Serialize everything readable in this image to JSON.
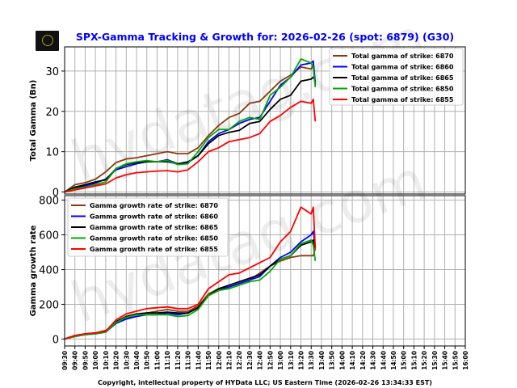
{
  "chart_data": [
    {
      "type": "line",
      "title": "SPX-Gamma Tracking & Growth for: 2026-02-26 (spot: 6879) (G30)",
      "ylabel": "Total Gamma (Bn)",
      "ylim": [
        -0.5,
        36
      ],
      "yticks": [
        0,
        10,
        20,
        30
      ],
      "grid": true,
      "legend_position": "top-right",
      "x": [
        "09:30",
        "09:40",
        "09:50",
        "10:00",
        "10:10",
        "10:20",
        "10:30",
        "10:40",
        "10:50",
        "11:00",
        "11:10",
        "11:20",
        "11:30",
        "11:40",
        "11:50",
        "12:00",
        "12:10",
        "12:20",
        "12:30",
        "12:40",
        "12:50",
        "13:00",
        "13:10",
        "13:20",
        "13:30",
        "13:32",
        "13:34"
      ],
      "series": [
        {
          "name": "Total gamma of strike: 6870",
          "color": "#8B3A0F",
          "values": [
            0,
            1.8,
            2.3,
            3.2,
            5.0,
            7.3,
            8.2,
            8.5,
            9.0,
            9.5,
            10.0,
            9.5,
            9.5,
            11.0,
            14.0,
            16.5,
            18.5,
            19.5,
            22.0,
            22.5,
            25.0,
            27.5,
            29.0,
            31.0,
            30.5,
            31.5,
            26.5
          ]
        },
        {
          "name": "Total gamma of strike: 6860",
          "color": "#0000FF",
          "values": [
            0,
            1.0,
            1.5,
            2.2,
            3.2,
            5.5,
            6.3,
            7.0,
            7.5,
            7.5,
            8.0,
            7.0,
            7.5,
            9.0,
            12.5,
            14.5,
            15.5,
            17.0,
            18.0,
            18.5,
            22.5,
            26.5,
            28.5,
            31.5,
            32.0,
            32.5,
            27.0
          ]
        },
        {
          "name": "Total gamma of strike: 6865",
          "color": "#000000",
          "values": [
            0,
            1.2,
            1.8,
            2.5,
            3.0,
            5.8,
            6.8,
            7.3,
            7.5,
            7.5,
            7.5,
            7.0,
            7.3,
            9.0,
            12.0,
            14.0,
            14.8,
            15.3,
            17.0,
            17.5,
            20.5,
            23.0,
            24.0,
            27.5,
            28.0,
            28.5,
            27.5
          ]
        },
        {
          "name": "Total gamma of strike: 6850",
          "color": "#00AA00",
          "values": [
            0,
            0.8,
            1.2,
            1.8,
            2.5,
            5.8,
            7.0,
            7.5,
            7.8,
            7.5,
            7.8,
            6.8,
            7.0,
            10.0,
            13.5,
            15.5,
            15.5,
            17.5,
            18.5,
            18.0,
            24.0,
            26.0,
            28.5,
            33.0,
            32.0,
            31.0,
            26.0
          ]
        },
        {
          "name": "Total gamma of strike: 6855",
          "color": "#FF0000",
          "values": [
            0,
            0.5,
            1.0,
            1.5,
            2.0,
            3.5,
            4.3,
            4.8,
            5.0,
            5.2,
            5.3,
            5.0,
            5.5,
            7.5,
            10.0,
            11.0,
            12.5,
            13.0,
            13.5,
            14.5,
            17.5,
            19.0,
            21.0,
            22.5,
            22.0,
            23.0,
            17.5
          ]
        }
      ]
    },
    {
      "type": "line",
      "ylabel": "Gamma growth rate",
      "ylim": [
        -40,
        826
      ],
      "yticks": [
        0,
        200,
        400,
        600,
        800
      ],
      "grid": true,
      "legend_position": "top-left",
      "x": [
        "09:30",
        "09:40",
        "09:50",
        "10:00",
        "10:10",
        "10:20",
        "10:30",
        "10:40",
        "10:50",
        "11:00",
        "11:10",
        "11:20",
        "11:30",
        "11:40",
        "11:50",
        "12:00",
        "12:10",
        "12:20",
        "12:30",
        "12:40",
        "12:50",
        "13:00",
        "13:10",
        "13:20",
        "13:30",
        "13:32",
        "13:34"
      ],
      "xticks": [
        "09:30",
        "09:40",
        "09:50",
        "10:00",
        "10:10",
        "10:20",
        "10:30",
        "10:40",
        "10:50",
        "11:00",
        "11:10",
        "11:20",
        "11:30",
        "11:40",
        "11:50",
        "12:00",
        "12:10",
        "12:20",
        "12:30",
        "12:40",
        "12:50",
        "13:00",
        "13:10",
        "13:20",
        "13:30",
        "13:40",
        "13:50",
        "14:00",
        "14:10",
        "14:20",
        "14:30",
        "14:40",
        "14:50",
        "15:00",
        "15:10",
        "15:20",
        "15:30",
        "15:40",
        "15:50",
        "16:00"
      ],
      "xlabel": "Copyright, intellectual property of HYData LLC; US Eastern Time (2026-02-26 13:34:33 EST)",
      "series": [
        {
          "name": "Gamma growth rate of strike: 6870",
          "color": "#8B3A0F",
          "values": [
            0,
            20,
            30,
            35,
            50,
            90,
            120,
            140,
            150,
            160,
            170,
            160,
            160,
            190,
            260,
            290,
            300,
            320,
            340,
            380,
            420,
            450,
            470,
            480,
            480,
            480,
            520
          ]
        },
        {
          "name": "Gamma growth rate of strike: 6860",
          "color": "#0000FF",
          "values": [
            0,
            15,
            25,
            30,
            40,
            90,
            115,
            130,
            140,
            140,
            150,
            140,
            150,
            180,
            250,
            280,
            300,
            320,
            340,
            360,
            420,
            470,
            500,
            560,
            600,
            620,
            530
          ]
        },
        {
          "name": "Gamma growth rate of strike: 6865",
          "color": "#000000",
          "values": [
            0,
            20,
            30,
            35,
            45,
            100,
            130,
            145,
            150,
            150,
            155,
            150,
            150,
            180,
            250,
            290,
            310,
            330,
            350,
            370,
            420,
            460,
            480,
            540,
            560,
            570,
            520
          ]
        },
        {
          "name": "Gamma growth rate of strike: 6850",
          "color": "#00AA00",
          "values": [
            0,
            15,
            25,
            30,
            40,
            95,
            125,
            140,
            140,
            140,
            140,
            130,
            135,
            170,
            250,
            280,
            290,
            310,
            330,
            340,
            390,
            460,
            480,
            550,
            570,
            540,
            450
          ]
        },
        {
          "name": "Gamma growth rate of strike: 6855",
          "color": "#FF0000",
          "values": [
            0,
            20,
            30,
            35,
            45,
            110,
            145,
            160,
            175,
            180,
            185,
            175,
            175,
            200,
            290,
            330,
            370,
            380,
            410,
            440,
            470,
            560,
            620,
            760,
            720,
            760,
            520
          ]
        }
      ]
    }
  ],
  "watermark": "hydatag.com"
}
